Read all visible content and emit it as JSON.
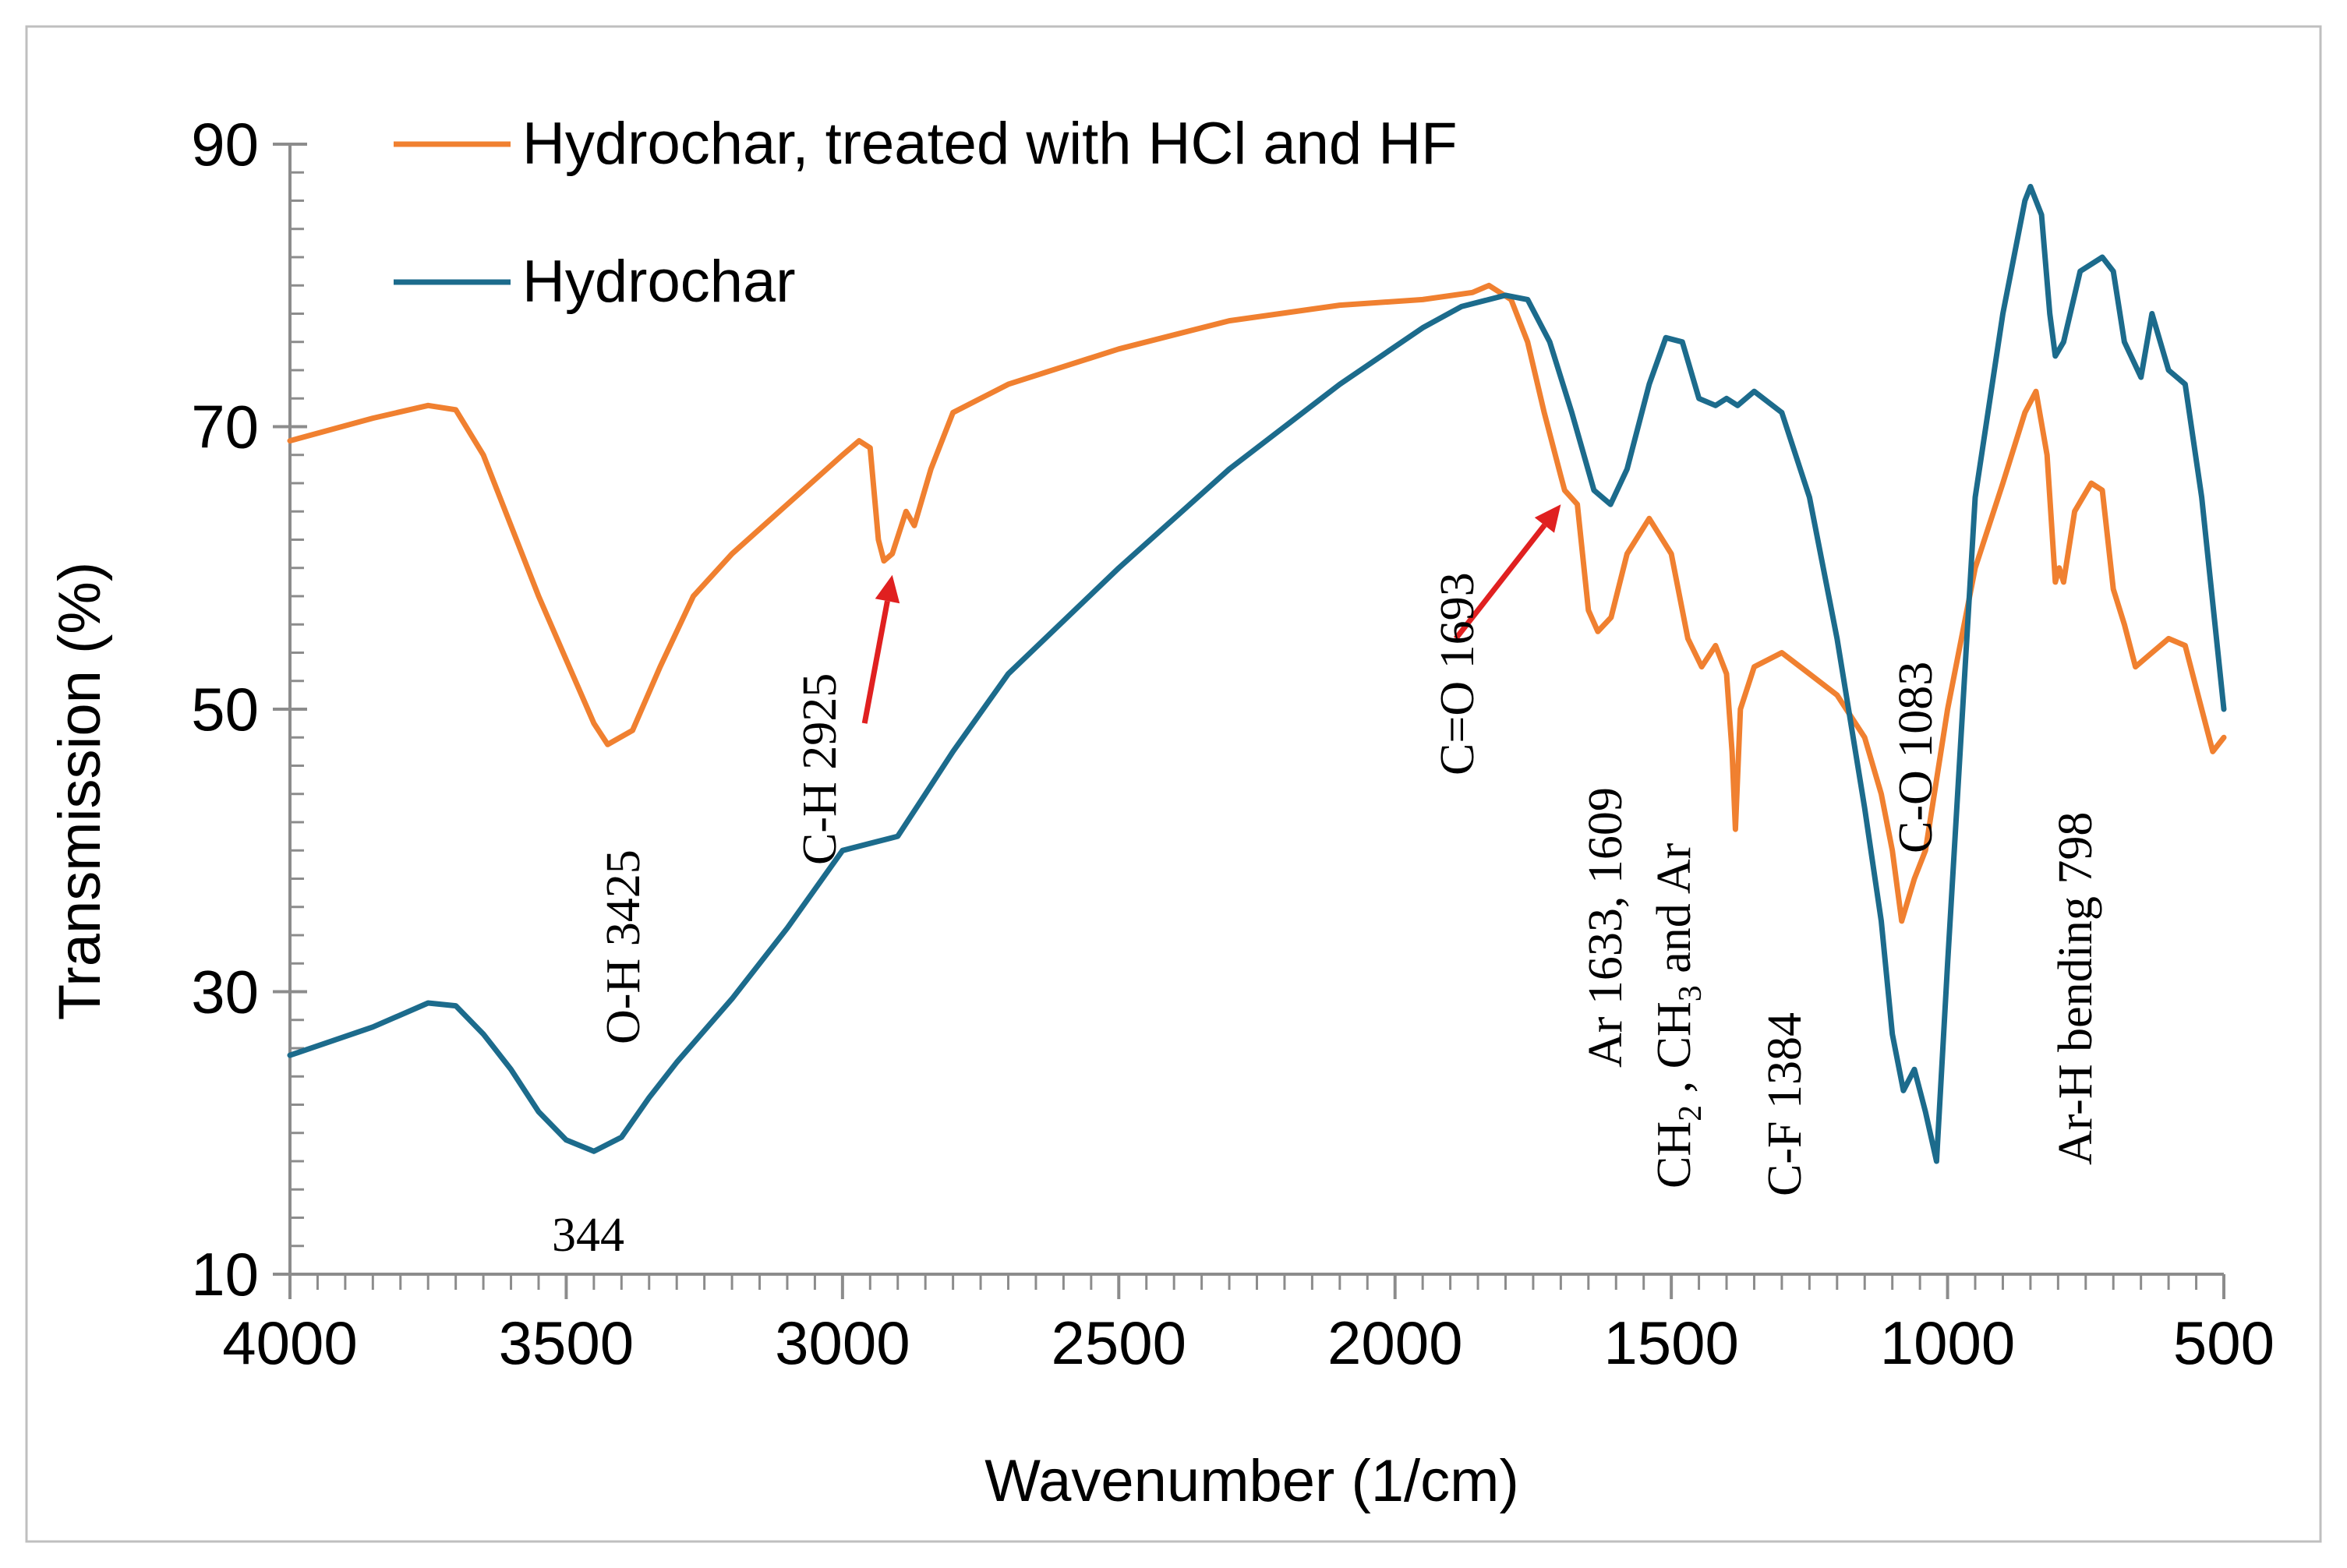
{
  "chart_data": {
    "type": "line",
    "xlabel": "Wavenumber (1/cm)",
    "ylabel": "Transmission (%)",
    "xlim": [
      4000,
      500
    ],
    "ylim": [
      10,
      90
    ],
    "x_ticks": [
      4000,
      3500,
      3000,
      2500,
      2000,
      1500,
      1000,
      500
    ],
    "y_ticks": [
      10,
      30,
      50,
      70,
      90
    ],
    "x_tick_labels": [
      "4000",
      "3500",
      "3000",
      "2500",
      "2000",
      "1500",
      "1000",
      "500"
    ],
    "y_tick_labels": [
      "10",
      "30",
      "50",
      "70",
      "90"
    ],
    "legend_position": "top-left",
    "series": [
      {
        "name": "Hydrochar, treated with HCl and HF",
        "color": "#F08030",
        "points": [
          [
            4000,
            69
          ],
          [
            3850,
            70.6
          ],
          [
            3750,
            71.5
          ],
          [
            3700,
            71.2
          ],
          [
            3650,
            68
          ],
          [
            3600,
            63
          ],
          [
            3550,
            58
          ],
          [
            3500,
            53.5
          ],
          [
            3450,
            49
          ],
          [
            3425,
            47.5
          ],
          [
            3380,
            48.5
          ],
          [
            3330,
            53
          ],
          [
            3270,
            58
          ],
          [
            3200,
            61
          ],
          [
            3100,
            64.5
          ],
          [
            3000,
            68
          ],
          [
            2970,
            69
          ],
          [
            2950,
            68.5
          ],
          [
            2935,
            62
          ],
          [
            2925,
            60.5
          ],
          [
            2910,
            61
          ],
          [
            2885,
            64
          ],
          [
            2870,
            63
          ],
          [
            2840,
            67
          ],
          [
            2800,
            71
          ],
          [
            2700,
            73
          ],
          [
            2500,
            75.5
          ],
          [
            2300,
            77.5
          ],
          [
            2100,
            78.6
          ],
          [
            1950,
            79
          ],
          [
            1860,
            79.5
          ],
          [
            1830,
            80
          ],
          [
            1790,
            79
          ],
          [
            1760,
            76
          ],
          [
            1730,
            71
          ],
          [
            1700,
            66.5
          ],
          [
            1693,
            65.5
          ],
          [
            1670,
            64.5
          ],
          [
            1650,
            57
          ],
          [
            1633,
            55.5
          ],
          [
            1609,
            56.5
          ],
          [
            1580,
            61
          ],
          [
            1540,
            63.5
          ],
          [
            1500,
            61
          ],
          [
            1470,
            55
          ],
          [
            1445,
            53
          ],
          [
            1420,
            54.5
          ],
          [
            1400,
            52.5
          ],
          [
            1390,
            47
          ],
          [
            1384,
            41.5
          ],
          [
            1375,
            50
          ],
          [
            1350,
            53
          ],
          [
            1300,
            54
          ],
          [
            1250,
            52.5
          ],
          [
            1200,
            51
          ],
          [
            1150,
            48
          ],
          [
            1120,
            44
          ],
          [
            1100,
            40
          ],
          [
            1083,
            35
          ],
          [
            1060,
            38
          ],
          [
            1040,
            40
          ],
          [
            1000,
            50
          ],
          [
            950,
            60
          ],
          [
            900,
            66
          ],
          [
            860,
            71
          ],
          [
            840,
            72.5
          ],
          [
            820,
            68
          ],
          [
            805,
            59
          ],
          [
            798,
            60
          ],
          [
            790,
            59
          ],
          [
            770,
            64
          ],
          [
            740,
            66
          ],
          [
            720,
            65.5
          ],
          [
            700,
            58.5
          ],
          [
            680,
            56
          ],
          [
            660,
            53
          ],
          [
            630,
            54
          ],
          [
            600,
            55
          ],
          [
            570,
            54.5
          ],
          [
            540,
            50
          ],
          [
            520,
            47
          ],
          [
            500,
            48
          ]
        ]
      },
      {
        "name": "Hydrochar",
        "color": "#1C6B8C",
        "points": [
          [
            4000,
            25.5
          ],
          [
            3850,
            27.5
          ],
          [
            3750,
            29.2
          ],
          [
            3700,
            29
          ],
          [
            3650,
            27
          ],
          [
            3600,
            24.5
          ],
          [
            3550,
            21.5
          ],
          [
            3500,
            19.5
          ],
          [
            3450,
            18.7
          ],
          [
            3400,
            19.7
          ],
          [
            3350,
            22.5
          ],
          [
            3300,
            25
          ],
          [
            3200,
            29.5
          ],
          [
            3100,
            34.5
          ],
          [
            3000,
            40
          ],
          [
            2950,
            40.5
          ],
          [
            2900,
            41
          ],
          [
            2850,
            44
          ],
          [
            2800,
            47
          ],
          [
            2700,
            52.5
          ],
          [
            2500,
            60
          ],
          [
            2300,
            67
          ],
          [
            2100,
            73
          ],
          [
            1950,
            77
          ],
          [
            1880,
            78.5
          ],
          [
            1800,
            79.3
          ],
          [
            1760,
            79
          ],
          [
            1720,
            76
          ],
          [
            1680,
            71
          ],
          [
            1640,
            65.5
          ],
          [
            1610,
            64.5
          ],
          [
            1580,
            67
          ],
          [
            1540,
            73
          ],
          [
            1510,
            76.3
          ],
          [
            1480,
            76
          ],
          [
            1450,
            72
          ],
          [
            1420,
            71.5
          ],
          [
            1400,
            72
          ],
          [
            1380,
            71.5
          ],
          [
            1350,
            72.5
          ],
          [
            1300,
            71
          ],
          [
            1250,
            65
          ],
          [
            1200,
            55
          ],
          [
            1150,
            43
          ],
          [
            1120,
            35
          ],
          [
            1100,
            27
          ],
          [
            1080,
            23
          ],
          [
            1060,
            24.5
          ],
          [
            1040,
            21.5
          ],
          [
            1020,
            18
          ],
          [
            1000,
            32
          ],
          [
            950,
            65
          ],
          [
            900,
            78
          ],
          [
            860,
            86
          ],
          [
            850,
            87
          ],
          [
            830,
            85
          ],
          [
            815,
            78
          ],
          [
            805,
            75
          ],
          [
            790,
            76
          ],
          [
            760,
            81
          ],
          [
            720,
            82
          ],
          [
            700,
            81
          ],
          [
            680,
            76
          ],
          [
            650,
            73.5
          ],
          [
            630,
            78
          ],
          [
            600,
            74
          ],
          [
            570,
            73
          ],
          [
            540,
            65
          ],
          [
            500,
            50
          ]
        ]
      }
    ],
    "annotations": [
      {
        "text": "O-H 3425",
        "x": 3425,
        "rotation": -90
      },
      {
        "text": "C-H 2925",
        "x": 2925,
        "rotation": -90
      },
      {
        "text": "C=O 1693",
        "x": 1693,
        "rotation": -90
      },
      {
        "text": "Ar 1633, 1609",
        "x": 1620,
        "rotation": -90
      },
      {
        "text": "CH2 , CH3 and Ar",
        "x": 1450,
        "rotation": -90
      },
      {
        "text": "C-F 1384",
        "x": 1384,
        "rotation": -90
      },
      {
        "text": "C-O 1083",
        "x": 1083,
        "rotation": -90
      },
      {
        "text": "Ar-H bending 798",
        "x": 798,
        "rotation": -90
      },
      {
        "text": "344",
        "x": 3450,
        "rotation": 0
      }
    ],
    "arrows": [
      {
        "name": "arrow-c-h",
        "from": [
          2960,
          49
        ],
        "to": [
          2910,
          59.5
        ],
        "color": "#E02020"
      },
      {
        "name": "arrow-c-o",
        "from": [
          1890,
          55
        ],
        "to": [
          1700,
          64.5
        ],
        "color": "#E02020"
      }
    ]
  }
}
